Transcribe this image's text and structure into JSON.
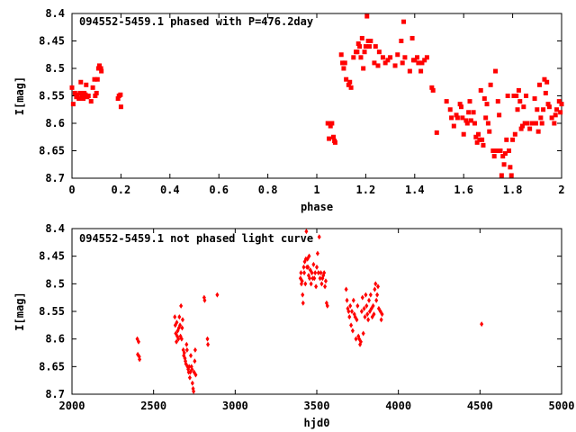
{
  "chart_data": [
    {
      "type": "scatter",
      "title": "094552-5459.1 phased with P=476.2day",
      "xlabel": "phase",
      "ylabel": "I[mag]",
      "xlim": [
        0,
        2
      ],
      "ylim": [
        8.7,
        8.4
      ],
      "y_inverted": true,
      "grid": false,
      "color": "#ff0000",
      "xticks": [
        "0",
        "0.2",
        "0.4",
        "0.6",
        "0.8",
        "1",
        "1.2",
        "1.4",
        "1.6",
        "1.8",
        "2"
      ],
      "yticks": [
        "8.4",
        "8.45",
        "8.5",
        "8.55",
        "8.6",
        "8.65",
        "8.7"
      ],
      "points": [
        [
          0.0,
          8.535
        ],
        [
          0.005,
          8.565
        ],
        [
          0.012,
          8.545
        ],
        [
          0.018,
          8.552
        ],
        [
          0.022,
          8.548
        ],
        [
          0.028,
          8.555
        ],
        [
          0.033,
          8.545
        ],
        [
          0.036,
          8.525
        ],
        [
          0.041,
          8.55
        ],
        [
          0.046,
          8.555
        ],
        [
          0.05,
          8.545
        ],
        [
          0.055,
          8.548
        ],
        [
          0.058,
          8.53
        ],
        [
          0.062,
          8.552
        ],
        [
          0.067,
          8.55
        ],
        [
          0.078,
          8.56
        ],
        [
          0.085,
          8.535
        ],
        [
          0.092,
          8.52
        ],
        [
          0.095,
          8.55
        ],
        [
          0.1,
          8.545
        ],
        [
          0.104,
          8.52
        ],
        [
          0.108,
          8.5
        ],
        [
          0.112,
          8.495
        ],
        [
          0.118,
          8.5
        ],
        [
          0.12,
          8.505
        ],
        [
          0.188,
          8.555
        ],
        [
          0.192,
          8.55
        ],
        [
          0.198,
          8.548
        ],
        [
          0.2,
          8.57
        ],
        [
          1.045,
          8.6
        ],
        [
          1.05,
          8.628
        ],
        [
          1.056,
          8.605
        ],
        [
          1.062,
          8.6
        ],
        [
          1.068,
          8.625
        ],
        [
          1.072,
          8.632
        ],
        [
          1.075,
          8.635
        ],
        [
          1.1,
          8.475
        ],
        [
          1.105,
          8.49
        ],
        [
          1.11,
          8.5
        ],
        [
          1.115,
          8.49
        ],
        [
          1.12,
          8.52
        ],
        [
          1.13,
          8.53
        ],
        [
          1.135,
          8.525
        ],
        [
          1.14,
          8.535
        ],
        [
          1.15,
          8.48
        ],
        [
          1.16,
          8.47
        ],
        [
          1.165,
          8.47
        ],
        [
          1.17,
          8.455
        ],
        [
          1.175,
          8.46
        ],
        [
          1.18,
          8.48
        ],
        [
          1.185,
          8.445
        ],
        [
          1.19,
          8.5
        ],
        [
          1.195,
          8.47
        ],
        [
          1.2,
          8.46
        ],
        [
          1.205,
          8.405
        ],
        [
          1.21,
          8.45
        ],
        [
          1.215,
          8.46
        ],
        [
          1.22,
          8.45
        ],
        [
          1.235,
          8.49
        ],
        [
          1.24,
          8.46
        ],
        [
          1.25,
          8.495
        ],
        [
          1.255,
          8.47
        ],
        [
          1.27,
          8.48
        ],
        [
          1.28,
          8.49
        ],
        [
          1.29,
          8.485
        ],
        [
          1.3,
          8.48
        ],
        [
          1.32,
          8.495
        ],
        [
          1.33,
          8.475
        ],
        [
          1.345,
          8.45
        ],
        [
          1.35,
          8.49
        ],
        [
          1.355,
          8.415
        ],
        [
          1.36,
          8.48
        ],
        [
          1.38,
          8.505
        ],
        [
          1.39,
          8.445
        ],
        [
          1.395,
          8.485
        ],
        [
          1.4,
          8.485
        ],
        [
          1.41,
          8.48
        ],
        [
          1.415,
          8.49
        ],
        [
          1.425,
          8.505
        ],
        [
          1.43,
          8.49
        ],
        [
          1.44,
          8.485
        ],
        [
          1.45,
          8.48
        ],
        [
          1.47,
          8.535
        ],
        [
          1.475,
          8.54
        ],
        [
          1.49,
          8.617
        ],
        [
          1.53,
          8.56
        ],
        [
          1.545,
          8.575
        ],
        [
          1.55,
          8.59
        ],
        [
          1.56,
          8.605
        ],
        [
          1.57,
          8.585
        ],
        [
          1.575,
          8.59
        ],
        [
          1.585,
          8.565
        ],
        [
          1.59,
          8.57
        ],
        [
          1.595,
          8.59
        ],
        [
          1.6,
          8.62
        ],
        [
          1.61,
          8.595
        ],
        [
          1.615,
          8.6
        ],
        [
          1.62,
          8.58
        ],
        [
          1.625,
          8.56
        ],
        [
          1.63,
          8.595
        ],
        [
          1.64,
          8.58
        ],
        [
          1.645,
          8.6
        ],
        [
          1.65,
          8.625
        ],
        [
          1.655,
          8.635
        ],
        [
          1.66,
          8.62
        ],
        [
          1.665,
          8.63
        ],
        [
          1.67,
          8.54
        ],
        [
          1.675,
          8.63
        ],
        [
          1.68,
          8.64
        ],
        [
          1.685,
          8.555
        ],
        [
          1.69,
          8.59
        ],
        [
          1.695,
          8.565
        ],
        [
          1.7,
          8.6
        ],
        [
          1.705,
          8.615
        ],
        [
          1.71,
          8.53
        ],
        [
          1.72,
          8.65
        ],
        [
          1.725,
          8.66
        ],
        [
          1.73,
          8.505
        ],
        [
          1.735,
          8.65
        ],
        [
          1.74,
          8.56
        ],
        [
          1.745,
          8.585
        ],
        [
          1.75,
          8.65
        ],
        [
          1.755,
          8.695
        ],
        [
          1.76,
          8.66
        ],
        [
          1.765,
          8.675
        ],
        [
          1.77,
          8.655
        ],
        [
          1.775,
          8.63
        ],
        [
          1.78,
          8.55
        ],
        [
          1.785,
          8.65
        ],
        [
          1.79,
          8.68
        ],
        [
          1.795,
          8.695
        ],
        [
          1.8,
          8.63
        ],
        [
          1.805,
          8.55
        ],
        [
          1.81,
          8.62
        ],
        [
          1.815,
          8.55
        ],
        [
          1.82,
          8.575
        ],
        [
          1.825,
          8.54
        ],
        [
          1.83,
          8.56
        ],
        [
          1.835,
          8.61
        ],
        [
          1.84,
          8.605
        ],
        [
          1.845,
          8.57
        ],
        [
          1.85,
          8.6
        ],
        [
          1.855,
          8.55
        ],
        [
          1.86,
          8.6
        ],
        [
          1.87,
          8.61
        ],
        [
          1.88,
          8.6
        ],
        [
          1.89,
          8.555
        ],
        [
          1.895,
          8.6
        ],
        [
          1.9,
          8.575
        ],
        [
          1.905,
          8.615
        ],
        [
          1.91,
          8.53
        ],
        [
          1.915,
          8.59
        ],
        [
          1.92,
          8.6
        ],
        [
          1.925,
          8.575
        ],
        [
          1.93,
          8.52
        ],
        [
          1.935,
          8.545
        ],
        [
          1.94,
          8.525
        ],
        [
          1.945,
          8.565
        ],
        [
          1.95,
          8.57
        ],
        [
          1.96,
          8.59
        ],
        [
          1.97,
          8.6
        ],
        [
          1.975,
          8.585
        ],
        [
          1.98,
          8.575
        ],
        [
          1.99,
          8.56
        ],
        [
          1.995,
          8.58
        ],
        [
          2.0,
          8.565
        ]
      ]
    },
    {
      "type": "scatter",
      "title": "094552-5459.1 not phased light curve",
      "xlabel": "hjd0",
      "ylabel": "I[mag]",
      "xlim": [
        2000,
        5000
      ],
      "ylim": [
        8.7,
        8.4
      ],
      "y_inverted": true,
      "grid": false,
      "color": "#ff0000",
      "xticks": [
        "2000",
        "2500",
        "3000",
        "3500",
        "4000",
        "4500",
        "5000"
      ],
      "yticks": [
        "8.4",
        "8.45",
        "8.5",
        "8.55",
        "8.6",
        "8.65",
        "8.7"
      ],
      "points": [
        [
          2400,
          8.6
        ],
        [
          2403,
          8.628
        ],
        [
          2408,
          8.605
        ],
        [
          2412,
          8.632
        ],
        [
          2414,
          8.637
        ],
        [
          2630,
          8.56
        ],
        [
          2633,
          8.575
        ],
        [
          2636,
          8.59
        ],
        [
          2640,
          8.605
        ],
        [
          2642,
          8.57
        ],
        [
          2645,
          8.595
        ],
        [
          2648,
          8.585
        ],
        [
          2652,
          8.6
        ],
        [
          2655,
          8.58
        ],
        [
          2658,
          8.56
        ],
        [
          2662,
          8.575
        ],
        [
          2665,
          8.595
        ],
        [
          2668,
          8.54
        ],
        [
          2672,
          8.6
        ],
        [
          2675,
          8.58
        ],
        [
          2678,
          8.565
        ],
        [
          2682,
          8.62
        ],
        [
          2685,
          8.63
        ],
        [
          2688,
          8.625
        ],
        [
          2692,
          8.635
        ],
        [
          2695,
          8.64
        ],
        [
          2698,
          8.645
        ],
        [
          2702,
          8.61
        ],
        [
          2705,
          8.62
        ],
        [
          2708,
          8.65
        ],
        [
          2712,
          8.655
        ],
        [
          2715,
          8.66
        ],
        [
          2718,
          8.65
        ],
        [
          2722,
          8.67
        ],
        [
          2725,
          8.66
        ],
        [
          2728,
          8.63
        ],
        [
          2732,
          8.65
        ],
        [
          2735,
          8.655
        ],
        [
          2738,
          8.68
        ],
        [
          2742,
          8.69
        ],
        [
          2745,
          8.695
        ],
        [
          2748,
          8.66
        ],
        [
          2752,
          8.64
        ],
        [
          2755,
          8.62
        ],
        [
          2758,
          8.665
        ],
        [
          2810,
          8.525
        ],
        [
          2813,
          8.53
        ],
        [
          2830,
          8.6
        ],
        [
          2833,
          8.61
        ],
        [
          2890,
          8.52
        ],
        [
          3400,
          8.49
        ],
        [
          3403,
          8.48
        ],
        [
          3406,
          8.5
        ],
        [
          3410,
          8.495
        ],
        [
          3413,
          8.52
        ],
        [
          3416,
          8.535
        ],
        [
          3420,
          8.47
        ],
        [
          3423,
          8.48
        ],
        [
          3426,
          8.46
        ],
        [
          3430,
          8.5
        ],
        [
          3433,
          8.455
        ],
        [
          3436,
          8.405
        ],
        [
          3440,
          8.47
        ],
        [
          3443,
          8.455
        ],
        [
          3446,
          8.47
        ],
        [
          3450,
          8.485
        ],
        [
          3453,
          8.45
        ],
        [
          3456,
          8.49
        ],
        [
          3460,
          8.475
        ],
        [
          3465,
          8.5
        ],
        [
          3470,
          8.48
        ],
        [
          3475,
          8.49
        ],
        [
          3480,
          8.465
        ],
        [
          3485,
          8.49
        ],
        [
          3490,
          8.48
        ],
        [
          3495,
          8.505
        ],
        [
          3500,
          8.47
        ],
        [
          3505,
          8.445
        ],
        [
          3510,
          8.48
        ],
        [
          3515,
          8.415
        ],
        [
          3520,
          8.49
        ],
        [
          3525,
          8.48
        ],
        [
          3530,
          8.5
        ],
        [
          3535,
          8.49
        ],
        [
          3540,
          8.485
        ],
        [
          3545,
          8.48
        ],
        [
          3550,
          8.505
        ],
        [
          3555,
          8.495
        ],
        [
          3560,
          8.535
        ],
        [
          3565,
          8.54
        ],
        [
          3680,
          8.51
        ],
        [
          3685,
          8.53
        ],
        [
          3690,
          8.545
        ],
        [
          3695,
          8.55
        ],
        [
          3700,
          8.56
        ],
        [
          3705,
          8.54
        ],
        [
          3710,
          8.575
        ],
        [
          3715,
          8.55
        ],
        [
          3720,
          8.585
        ],
        [
          3725,
          8.53
        ],
        [
          3730,
          8.555
        ],
        [
          3735,
          8.56
        ],
        [
          3740,
          8.6
        ],
        [
          3745,
          8.565
        ],
        [
          3750,
          8.54
        ],
        [
          3755,
          8.595
        ],
        [
          3760,
          8.6
        ],
        [
          3765,
          8.61
        ],
        [
          3770,
          8.605
        ],
        [
          3775,
          8.55
        ],
        [
          3780,
          8.525
        ],
        [
          3785,
          8.59
        ],
        [
          3790,
          8.545
        ],
        [
          3795,
          8.56
        ],
        [
          3800,
          8.52
        ],
        [
          3805,
          8.54
        ],
        [
          3810,
          8.555
        ],
        [
          3815,
          8.565
        ],
        [
          3820,
          8.53
        ],
        [
          3825,
          8.55
        ],
        [
          3830,
          8.52
        ],
        [
          3835,
          8.545
        ],
        [
          3840,
          8.56
        ],
        [
          3845,
          8.54
        ],
        [
          3850,
          8.555
        ],
        [
          3855,
          8.51
        ],
        [
          3860,
          8.5
        ],
        [
          3865,
          8.53
        ],
        [
          3870,
          8.52
        ],
        [
          3875,
          8.505
        ],
        [
          3880,
          8.545
        ],
        [
          3890,
          8.55
        ],
        [
          3895,
          8.565
        ],
        [
          3900,
          8.555
        ],
        [
          4510,
          8.573
        ]
      ]
    }
  ]
}
